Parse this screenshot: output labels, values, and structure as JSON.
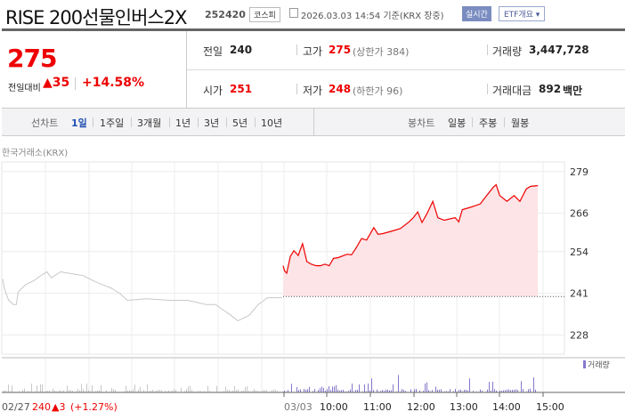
{
  "header": {
    "title": "RISE 200선물인버스2X",
    "code": "252420",
    "market": "코스피",
    "datetime": "2026.03.03 14:54 기준(KRX 장중)",
    "realtime_label": "실시간",
    "etf_label": "ETF개요 ▾"
  },
  "summary": {
    "price": "275",
    "change_label": "전일대비",
    "change": "▲35",
    "change_pct": "+14.58%",
    "prev_label": "전일",
    "prev": "240",
    "open_label": "시가",
    "open": "251",
    "high_label": "고가",
    "high": "275",
    "upper_limit": "(상한가 384)",
    "low_label": "저가",
    "low": "248",
    "lower_limit": "(하한가 96)",
    "volume_label": "거래량",
    "volume": "3,447,728",
    "amount_label": "거래대금",
    "amount": "892",
    "amount_unit": "백만"
  },
  "tabs": {
    "line_label": "선차트",
    "line": [
      "1일",
      "1주일",
      "3개월",
      "1년",
      "3년",
      "5년",
      "10년"
    ],
    "line_active": "1일",
    "candle_label": "봉차트",
    "candle": [
      "일봉",
      "주봉",
      "월봉"
    ]
  },
  "source": "한국거래소(KRX)",
  "colors": {
    "up": "#ee0000",
    "prev_line": "#c8c8cc",
    "fill": "#fde4e6",
    "volume": "#8877cc",
    "active_tab": "#1f4fb0"
  },
  "chart_data": {
    "type": "line",
    "ylim": [
      222,
      282
    ],
    "yticks": [
      "279",
      "266",
      "254",
      "241",
      "228"
    ],
    "baseline": 240,
    "prev_day": {
      "date": "02/27",
      "close": "240",
      "change": "▲3",
      "change_pct": "(+1.27%)",
      "points": [
        [
          "09:00",
          245.5
        ],
        [
          "09:03",
          242.7
        ],
        [
          "09:12",
          238.9
        ],
        [
          "09:22",
          237.5
        ],
        [
          "09:28",
          237.5
        ],
        [
          "09:32",
          241.4
        ],
        [
          "09:47",
          243.7
        ],
        [
          "10:05",
          245
        ],
        [
          "10:13",
          246
        ],
        [
          "10:31",
          247.7
        ],
        [
          "10:40",
          245.8
        ],
        [
          "10:59",
          247.7
        ],
        [
          "11:18",
          247.2
        ],
        [
          "11:46",
          246.5
        ],
        [
          "12:05",
          245
        ],
        [
          "12:20",
          244
        ],
        [
          "12:42",
          242.7
        ],
        [
          "13:00",
          241
        ],
        [
          "13:16",
          238.8
        ],
        [
          "13:56",
          239.3
        ],
        [
          "14:43",
          238.8
        ],
        [
          "15:20",
          238.8
        ],
        [
          "15:58",
          237.5
        ],
        [
          "16:17",
          237.5
        ],
        [
          "16:49",
          234.1
        ],
        [
          "17:03",
          232.4
        ],
        [
          "17:26",
          234.1
        ],
        [
          "17:45",
          237.5
        ],
        [
          "18:04",
          239.6
        ],
        [
          "18:34",
          239.6
        ]
      ]
    },
    "today": {
      "date": "03/03",
      "points": [
        [
          "09:00",
          249.6
        ],
        [
          "09:02",
          248
        ],
        [
          "09:05",
          247.3
        ],
        [
          "09:10",
          252.5
        ],
        [
          "09:15",
          254.3
        ],
        [
          "09:21",
          252.8
        ],
        [
          "09:27",
          256.5
        ],
        [
          "09:33",
          250.9
        ],
        [
          "09:39",
          250.1
        ],
        [
          "09:46",
          249.6
        ],
        [
          "09:52",
          249.6
        ],
        [
          "09:58",
          250.1
        ],
        [
          "10:04",
          249.6
        ],
        [
          "10:10",
          251.9
        ],
        [
          "10:16",
          252.1
        ],
        [
          "10:29",
          253.2
        ],
        [
          "10:35",
          253
        ],
        [
          "10:41",
          255
        ],
        [
          "10:49",
          258.1
        ],
        [
          "10:56",
          257.6
        ],
        [
          "11:06",
          261.5
        ],
        [
          "11:12",
          259.4
        ],
        [
          "11:18",
          259.6
        ],
        [
          "11:31",
          260.4
        ],
        [
          "11:43",
          261.2
        ],
        [
          "11:55",
          263.3
        ],
        [
          "12:01",
          264.6
        ],
        [
          "12:07",
          266.4
        ],
        [
          "12:13",
          263.1
        ],
        [
          "12:20",
          265.9
        ],
        [
          "12:28",
          269.7
        ],
        [
          "12:35",
          264.6
        ],
        [
          "12:44",
          263.8
        ],
        [
          "12:59",
          264.6
        ],
        [
          "13:04",
          263.3
        ],
        [
          "13:09",
          267.1
        ],
        [
          "13:21",
          267.9
        ],
        [
          "13:34",
          268.9
        ],
        [
          "13:41",
          271
        ],
        [
          "13:52",
          274.1
        ],
        [
          "13:56",
          274.9
        ],
        [
          "14:01",
          271.5
        ],
        [
          "14:11",
          269.7
        ],
        [
          "14:21",
          271.5
        ],
        [
          "14:29",
          269.7
        ],
        [
          "14:38",
          273.6
        ],
        [
          "14:44",
          274.4
        ],
        [
          "14:54",
          274.6
        ]
      ]
    },
    "xticks": [
      "03/03",
      "10:00",
      "11:00",
      "12:00",
      "13:00",
      "14:00",
      "15:00"
    ],
    "volume_legend": "거래량"
  }
}
